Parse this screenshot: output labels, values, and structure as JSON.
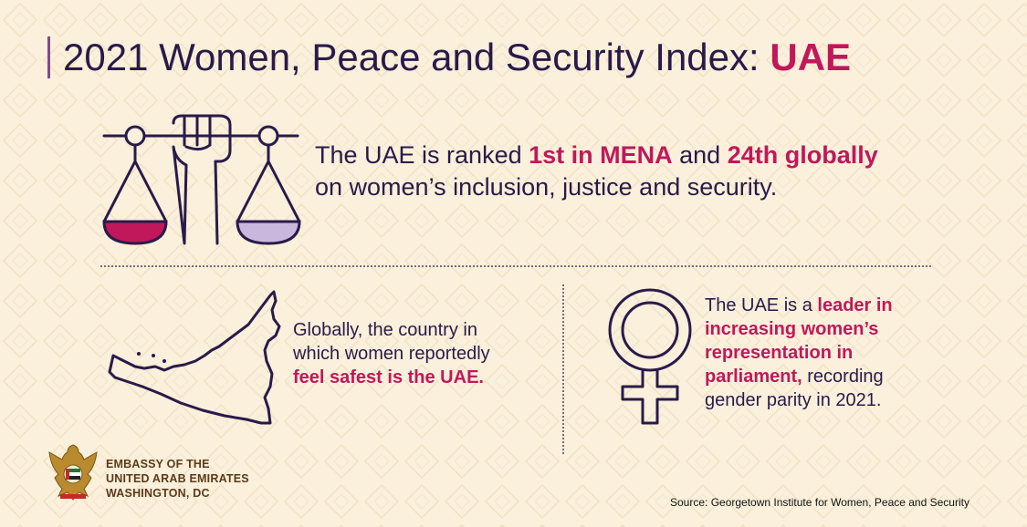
{
  "title": {
    "main": "2021 Women, Peace and Security Index: ",
    "accent": "UAE"
  },
  "ranking": {
    "pre": "The UAE is ranked ",
    "hl1": "1st in MENA",
    "mid": " and ",
    "hl2": "24th globally",
    "post": "on women’s inclusion, justice and security."
  },
  "safety": {
    "line1": "Globally, the country in",
    "line2": "which women reportedly",
    "hl": "feel safest is the UAE."
  },
  "parliament": {
    "pre": "The UAE is a ",
    "hl1": "leader in",
    "hl2": "increasing women’s",
    "hl3": "representation in",
    "hl4": "parliament,",
    "post1": " recording",
    "post2": "gender parity in 2021."
  },
  "embassy": {
    "line1": "EMBASSY OF THE",
    "line2": "UNITED ARAB EMIRATES",
    "line3": "WASHINGTON, DC"
  },
  "source": "Source: Georgetown Institute for Women, Peace and Security",
  "colors": {
    "accent": "#c0185a",
    "ink": "#2a1a4a",
    "lavender": "#c9b7dd",
    "background": "#faf0db"
  },
  "icons": [
    "scales-fist-icon",
    "uae-map-icon",
    "female-symbol-icon",
    "uae-emblem-icon"
  ]
}
